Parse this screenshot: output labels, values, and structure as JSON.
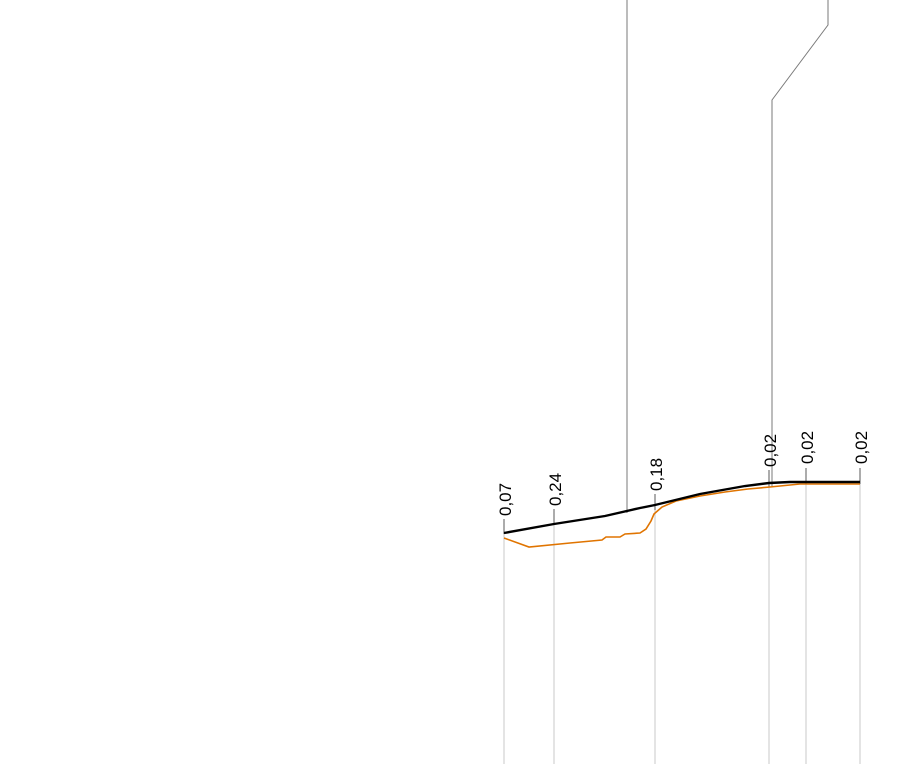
{
  "drawing": {
    "colors": {
      "design_line": "#000000",
      "ground_line": "#e07400",
      "structure_line": "#7a7a7a",
      "station_line": "#c8c8c8"
    },
    "stations": [
      {
        "label": "0,07"
      },
      {
        "label": "0,24"
      },
      {
        "label": "0,18"
      },
      {
        "label": "0,02"
      },
      {
        "label": "0,02"
      },
      {
        "label": "0,02"
      }
    ]
  }
}
